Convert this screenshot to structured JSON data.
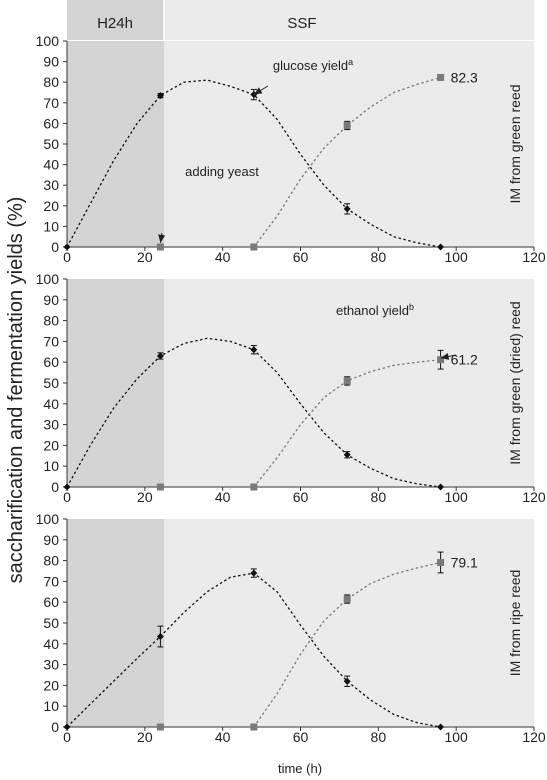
{
  "figure": {
    "ylabel": "saccharification and fermentation yields (%)",
    "xlabel": "time (h)",
    "phase_labels": [
      "H24h",
      "SSF"
    ]
  },
  "chart_data": [
    {
      "type": "line",
      "side_label": "IM from green reed",
      "xlim": [
        0,
        120
      ],
      "ylim": [
        0,
        100
      ],
      "x_ticks": [
        0,
        20,
        40,
        60,
        80,
        100,
        120
      ],
      "y_ticks": [
        0,
        10,
        20,
        30,
        40,
        50,
        60,
        70,
        80,
        90,
        100
      ],
      "series": [
        {
          "marker": "diamond",
          "color": "#111111",
          "points": [
            [
              0,
              0
            ],
            [
              24,
              73.5
            ],
            [
              48,
              74
            ],
            [
              72,
              18.5
            ],
            [
              96,
              0
            ]
          ],
          "errors": [
            0,
            1,
            2.5,
            2.5,
            0
          ],
          "curve": [
            [
              0,
              0
            ],
            [
              6,
              21
            ],
            [
              12,
              42
            ],
            [
              18,
              60
            ],
            [
              24,
              73.5
            ],
            [
              30,
              80
            ],
            [
              36,
              81
            ],
            [
              42,
              78
            ],
            [
              48,
              74
            ],
            [
              54,
              62
            ],
            [
              60,
              45
            ],
            [
              66,
              30
            ],
            [
              72,
              18.5
            ],
            [
              78,
              11
            ],
            [
              84,
              5
            ],
            [
              90,
              2
            ],
            [
              96,
              0
            ]
          ]
        },
        {
          "marker": "square",
          "color": "#7a7a7a",
          "points": [
            [
              24,
              0
            ],
            [
              48,
              0
            ],
            [
              72,
              59
            ],
            [
              96,
              82.3
            ]
          ],
          "errors": [
            0,
            0,
            2,
            1
          ],
          "curve": [
            [
              48,
              0
            ],
            [
              54,
              15
            ],
            [
              60,
              33
            ],
            [
              66,
              48
            ],
            [
              72,
              59
            ],
            [
              78,
              68
            ],
            [
              84,
              75
            ],
            [
              90,
              79
            ],
            [
              96,
              82.3
            ]
          ]
        }
      ],
      "annotations": [
        {
          "text": "glucose yield",
          "sup": "a",
          "target": [
            48,
            74
          ]
        },
        {
          "text": "adding yeast",
          "target": [
            24,
            2
          ]
        }
      ],
      "end_value_label": "82.3",
      "shade_to_x": 25
    },
    {
      "type": "line",
      "side_label": "IM from green (dried) reed",
      "xlim": [
        0,
        120
      ],
      "ylim": [
        0,
        100
      ],
      "x_ticks": [
        0,
        20,
        40,
        60,
        80,
        100,
        120
      ],
      "y_ticks": [
        0,
        10,
        20,
        30,
        40,
        50,
        60,
        70,
        80,
        90,
        100
      ],
      "series": [
        {
          "marker": "diamond",
          "color": "#111111",
          "points": [
            [
              0,
              0
            ],
            [
              24,
              63
            ],
            [
              48,
              66
            ],
            [
              72,
              15.5
            ],
            [
              96,
              0
            ]
          ],
          "errors": [
            0,
            1.5,
            2,
            1.5,
            0
          ],
          "curve": [
            [
              0,
              0
            ],
            [
              6,
              20
            ],
            [
              12,
              38
            ],
            [
              18,
              52
            ],
            [
              24,
              63
            ],
            [
              30,
              69
            ],
            [
              36,
              71.5
            ],
            [
              42,
              70
            ],
            [
              48,
              66
            ],
            [
              54,
              55
            ],
            [
              60,
              40
            ],
            [
              66,
              26
            ],
            [
              72,
              15.5
            ],
            [
              78,
              9
            ],
            [
              84,
              4
            ],
            [
              90,
              1.5
            ],
            [
              96,
              0
            ]
          ]
        },
        {
          "marker": "square",
          "color": "#7a7a7a",
          "points": [
            [
              24,
              0
            ],
            [
              48,
              0
            ],
            [
              72,
              51
            ],
            [
              96,
              61.2
            ]
          ],
          "errors": [
            0,
            0,
            2,
            4.5
          ],
          "curve": [
            [
              48,
              0
            ],
            [
              54,
              14
            ],
            [
              60,
              30
            ],
            [
              66,
              43
            ],
            [
              72,
              51
            ],
            [
              78,
              55.5
            ],
            [
              84,
              58.5
            ],
            [
              90,
              60
            ],
            [
              96,
              61.2
            ]
          ]
        }
      ],
      "annotations": [
        {
          "text": "ethanol yield",
          "sup": "b",
          "target": [
            96,
            62
          ]
        }
      ],
      "end_value_label": "61.2",
      "shade_to_x": 25
    },
    {
      "type": "line",
      "side_label": "IM from ripe reed",
      "xlim": [
        0,
        120
      ],
      "ylim": [
        0,
        100
      ],
      "x_ticks": [
        0,
        20,
        40,
        60,
        80,
        100,
        120
      ],
      "y_ticks": [
        0,
        10,
        20,
        30,
        40,
        50,
        60,
        70,
        80,
        90,
        100
      ],
      "series": [
        {
          "marker": "diamond",
          "color": "#111111",
          "points": [
            [
              0,
              0
            ],
            [
              24,
              43.5
            ],
            [
              48,
              74
            ],
            [
              72,
              22
            ],
            [
              96,
              0
            ]
          ],
          "errors": [
            0,
            5,
            2,
            2.5,
            0
          ],
          "curve": [
            [
              0,
              0
            ],
            [
              6,
              11
            ],
            [
              12,
              22
            ],
            [
              18,
              33
            ],
            [
              24,
              43.5
            ],
            [
              30,
              55
            ],
            [
              36,
              65
            ],
            [
              42,
              72
            ],
            [
              48,
              74
            ],
            [
              54,
              65
            ],
            [
              60,
              49
            ],
            [
              66,
              34
            ],
            [
              72,
              22
            ],
            [
              78,
              13
            ],
            [
              84,
              6
            ],
            [
              90,
              2
            ],
            [
              96,
              0
            ]
          ]
        },
        {
          "marker": "square",
          "color": "#7a7a7a",
          "points": [
            [
              24,
              0
            ],
            [
              48,
              0
            ],
            [
              72,
              61.5
            ],
            [
              96,
              79.1
            ]
          ],
          "errors": [
            0,
            0,
            2,
            5
          ],
          "curve": [
            [
              48,
              0
            ],
            [
              54,
              16
            ],
            [
              60,
              35
            ],
            [
              66,
              51
            ],
            [
              72,
              61.5
            ],
            [
              78,
              69
            ],
            [
              84,
              73.5
            ],
            [
              90,
              76.5
            ],
            [
              96,
              79.1
            ]
          ]
        }
      ],
      "annotations": [],
      "end_value_label": "79.1",
      "shade_to_x": 25
    }
  ]
}
